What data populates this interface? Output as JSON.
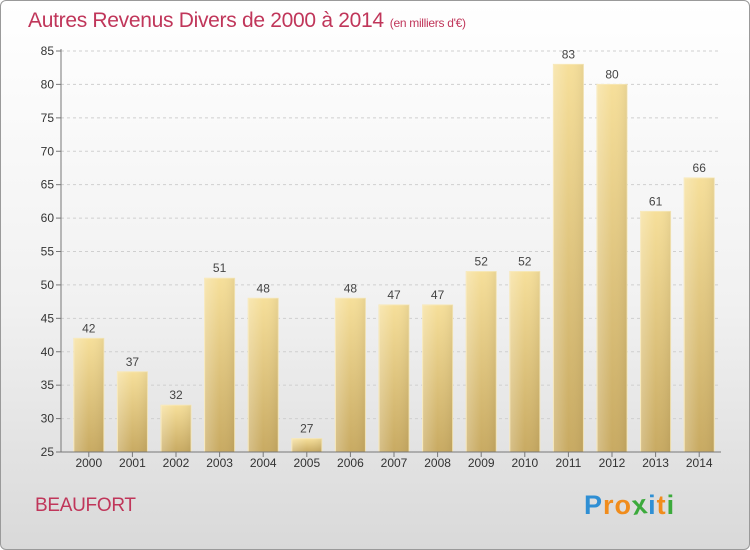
{
  "chart_data": {
    "type": "bar",
    "title": "Autres Revenus Divers de 2000 à 2014",
    "unit_note": "(en milliers d'€)",
    "categories": [
      "2000",
      "2001",
      "2002",
      "2003",
      "2004",
      "2005",
      "2006",
      "2007",
      "2008",
      "2009",
      "2010",
      "2011",
      "2012",
      "2013",
      "2014"
    ],
    "values": [
      42,
      37,
      32,
      51,
      48,
      27,
      48,
      47,
      47,
      52,
      52,
      83,
      80,
      61,
      66
    ],
    "data_labels": [
      "42",
      "37",
      "32",
      "51",
      "48",
      "27",
      "48",
      "47",
      "47",
      "52",
      "52",
      "83",
      "80",
      "61",
      "66"
    ],
    "ylim": [
      25,
      85
    ],
    "yticks": [
      "25",
      "30",
      "35",
      "40",
      "45",
      "50",
      "55",
      "60",
      "65",
      "70",
      "75",
      "80",
      "85"
    ],
    "grid": true,
    "bar_color": "#e8c97e",
    "title_color": "#c0365a"
  },
  "place": "BEAUFORT",
  "logo": {
    "letters": [
      "P",
      "r",
      "o",
      "x",
      "i",
      "t",
      "i"
    ],
    "colors": [
      "#2f8fd4",
      "#f08c1c",
      "#f08c1c",
      "#3caa3c",
      "#2f8fd4",
      "#f08c1c",
      "#3caa3c"
    ]
  }
}
